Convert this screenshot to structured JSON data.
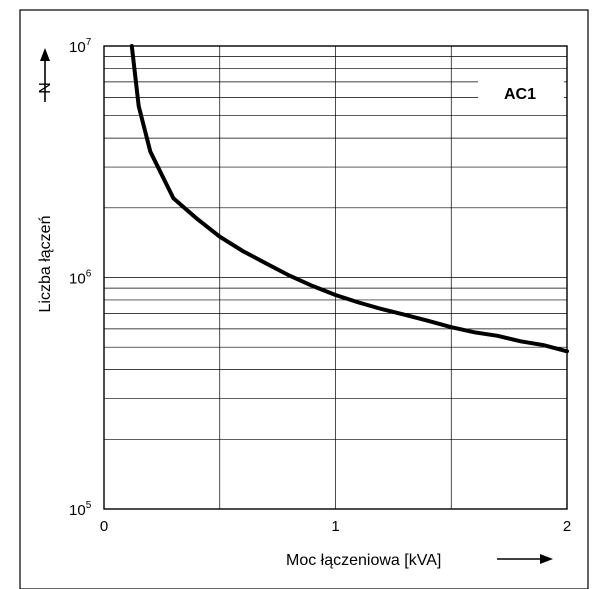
{
  "chart_data": {
    "type": "line",
    "xlabel": "Moc łączeniowa [kVA]",
    "ylabel": "Liczba łączeń",
    "y_symbol": "N",
    "x_scale": "linear",
    "y_scale": "log",
    "xlim": [
      0,
      2
    ],
    "ylim": [
      100000,
      10000000
    ],
    "x_grid": [
      0.5,
      1,
      1.5
    ],
    "grid": true,
    "x_ticks": [
      {
        "value": 0,
        "label": "0"
      },
      {
        "value": 1,
        "label": "1"
      },
      {
        "value": 2,
        "label": "2"
      }
    ],
    "y_ticks": [
      {
        "value": 100000,
        "base": "10",
        "exp": "5"
      },
      {
        "value": 1000000,
        "base": "10",
        "exp": "6"
      },
      {
        "value": 10000000,
        "base": "10",
        "exp": "7"
      }
    ],
    "annotation": "AC1",
    "series": [
      {
        "x": [
          0.12,
          0.15,
          0.2,
          0.3,
          0.4,
          0.5,
          0.6,
          0.7,
          0.8,
          0.9,
          1.0,
          1.1,
          1.2,
          1.3,
          1.4,
          1.5,
          1.6,
          1.7,
          1.8,
          1.9,
          2.0
        ],
        "y": [
          10000000,
          5500000,
          3500000,
          2200000,
          1800000,
          1500000,
          1300000,
          1150000,
          1020000,
          920000,
          840000,
          780000,
          730000,
          690000,
          650000,
          610000,
          580000,
          560000,
          530000,
          510000,
          480000
        ]
      }
    ]
  }
}
